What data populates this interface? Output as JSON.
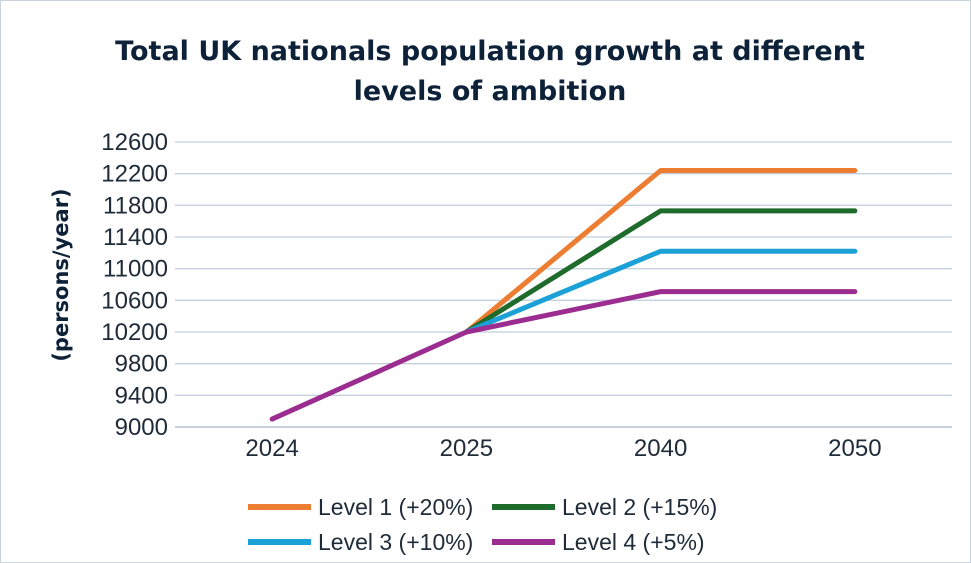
{
  "chart_data": {
    "type": "line",
    "title_lines": [
      "Total UK nationals population growth at different",
      "levels of ambition"
    ],
    "xlabel": "",
    "ylabel": "(persons/year)",
    "categories": [
      "2024",
      "2025",
      "2040",
      "2050"
    ],
    "ylim": [
      9000,
      12600
    ],
    "yticks": [
      9000,
      9400,
      9800,
      10200,
      10600,
      11000,
      11400,
      11800,
      12200,
      12600
    ],
    "grid": "horizontal",
    "legend_position": "bottom",
    "series": [
      {
        "name": "Level 1 (+20%)",
        "color": "#ed7d31",
        "values": [
          null,
          10200,
          12240,
          12240
        ]
      },
      {
        "name": "Level 2 (+15%)",
        "color": "#1e6b2b",
        "values": [
          null,
          10200,
          11730,
          11730
        ]
      },
      {
        "name": "Level 3 (+10%)",
        "color": "#1ba1d6",
        "values": [
          null,
          10200,
          11220,
          11220
        ]
      },
      {
        "name": "Level 4 (+5%)",
        "color": "#9b2d91",
        "values": [
          9100,
          10200,
          10710,
          10710
        ]
      }
    ]
  }
}
